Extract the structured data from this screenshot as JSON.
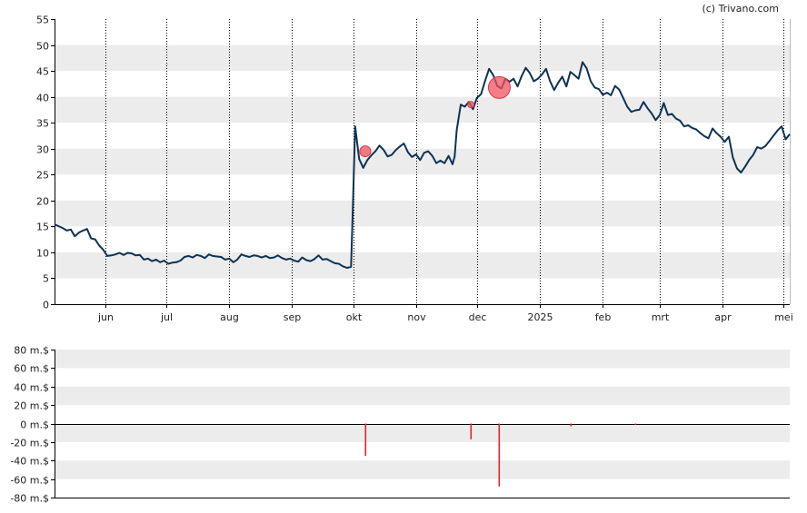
{
  "credit": "(c) Trivano.com",
  "colors": {
    "price_line": "#0e3354",
    "marker": "#f0525f",
    "volume_bar": "#e8202f",
    "band": "#ececec",
    "axis": "#000000"
  },
  "chart_data": [
    {
      "type": "line",
      "title": "",
      "xlabel": "",
      "ylabel": "",
      "ylim": [
        0,
        55
      ],
      "yticks": [
        0,
        5,
        10,
        15,
        20,
        25,
        30,
        35,
        40,
        45,
        50,
        55
      ],
      "grid": "vertical dotted at month ticks; horizontal alternating bands",
      "x_ticks": [
        "jun",
        "jul",
        "aug",
        "sep",
        "okt",
        "nov",
        "dec",
        "2025",
        "feb",
        "mrt",
        "apr",
        "mei"
      ],
      "x_tick_days": [
        25,
        55,
        86,
        117,
        147,
        178,
        208,
        239,
        270,
        298,
        329,
        359
      ],
      "x_range_days": [
        0,
        362
      ],
      "series": [
        {
          "day": [
            0,
            4,
            6,
            8,
            10,
            12,
            14,
            16,
            18,
            20,
            22,
            24,
            26,
            28,
            30,
            32,
            34,
            36,
            38,
            40,
            42,
            44,
            46,
            48,
            50,
            52,
            54,
            56,
            58,
            60,
            62,
            64,
            66,
            68,
            70,
            72,
            74,
            76,
            78,
            80,
            82,
            84,
            86,
            88,
            90,
            92,
            94,
            96,
            98,
            100,
            102,
            104,
            106,
            108,
            110,
            112,
            114,
            116,
            118,
            120,
            122,
            124,
            126,
            128,
            130,
            132,
            134,
            136,
            138,
            140,
            142,
            144,
            146,
            147,
            148,
            150,
            152,
            154,
            156,
            158,
            160,
            162,
            164,
            166,
            168,
            170,
            172,
            174,
            176,
            178,
            180,
            182,
            184,
            186,
            188,
            190,
            192,
            194,
            196,
            197,
            198,
            200,
            202,
            204,
            206,
            208,
            210,
            212,
            214,
            216,
            218,
            220,
            222,
            224,
            226,
            228,
            230,
            232,
            234,
            236,
            238,
            240,
            242,
            244,
            246,
            248,
            250,
            252,
            254,
            256,
            258,
            260,
            262,
            264,
            266,
            268,
            270,
            272,
            274,
            276,
            278,
            280,
            282,
            284,
            286,
            288,
            290,
            292,
            294,
            296,
            298,
            300,
            302,
            304,
            306,
            308,
            310,
            312,
            314,
            316,
            318,
            320,
            322,
            324,
            326,
            328,
            330,
            332,
            334,
            336,
            338,
            340,
            342,
            344,
            346,
            348,
            350,
            352,
            354,
            356,
            358,
            360,
            362
          ],
          "values": [
            15.4,
            14.7,
            14.2,
            14.4,
            13.1,
            13.8,
            14.2,
            14.5,
            12.7,
            12.5,
            11.3,
            10.5,
            9.3,
            9.4,
            9.6,
            9.9,
            9.5,
            9.9,
            9.8,
            9.4,
            9.5,
            8.6,
            8.8,
            8.3,
            8.6,
            8.1,
            8.4,
            7.8,
            8.0,
            8.1,
            8.4,
            9.1,
            9.3,
            9.0,
            9.5,
            9.3,
            8.9,
            9.6,
            9.3,
            9.2,
            9.1,
            8.6,
            8.8,
            8.1,
            8.6,
            9.6,
            9.3,
            9.1,
            9.4,
            9.3,
            9.0,
            9.3,
            8.9,
            9.0,
            9.4,
            8.9,
            8.6,
            8.8,
            8.4,
            8.2,
            9.0,
            8.5,
            8.3,
            8.7,
            9.4,
            8.6,
            8.7,
            8.3,
            7.9,
            7.8,
            7.3,
            7.0,
            7.2,
            20.0,
            34.3,
            28.0,
            26.3,
            27.8,
            28.7,
            29.5,
            30.6,
            29.8,
            28.5,
            28.8,
            29.7,
            30.4,
            31.0,
            29.3,
            28.4,
            28.9,
            27.8,
            29.2,
            29.5,
            28.6,
            27.2,
            27.7,
            27.2,
            28.6,
            27.0,
            28.5,
            33.5,
            38.5,
            38.1,
            39.0,
            37.6,
            39.8,
            40.5,
            43.1,
            45.4,
            44.2,
            42.1,
            41.6,
            43.5,
            42.9,
            43.5,
            42.0,
            44.0,
            45.6,
            44.6,
            43.0,
            43.5,
            44.3,
            45.4,
            43.0,
            41.3,
            42.7,
            43.9,
            42.0,
            44.8,
            44.2,
            43.5,
            46.7,
            45.5,
            43.0,
            41.8,
            41.5,
            40.4,
            40.8,
            40.3,
            42.1,
            41.4,
            39.8,
            38.1,
            37.1,
            37.4,
            37.5,
            39.0,
            37.8,
            36.8,
            35.5,
            36.5,
            38.8,
            36.5,
            36.7,
            35.8,
            35.4,
            34.3,
            34.5,
            34.0,
            33.7,
            33.0,
            32.4,
            32.0,
            33.9,
            33.0,
            32.3,
            31.3,
            32.3,
            28.3,
            26.2,
            25.4,
            26.5,
            27.8,
            28.8,
            30.3,
            30.0,
            30.5,
            31.5,
            32.5,
            33.5,
            34.3,
            31.8,
            32.8,
            33.0,
            33.3
          ]
        }
      ],
      "markers": [
        {
          "day": 153,
          "value": 29.5,
          "size": "small"
        },
        {
          "day": 205,
          "value": 38.5,
          "size": "tiny"
        },
        {
          "day": 219,
          "value": 41.8,
          "size": "large"
        }
      ]
    },
    {
      "type": "bar",
      "title": "",
      "xlabel": "",
      "ylabel": "",
      "ylim": [
        -80,
        80
      ],
      "ytick_values": [
        80,
        60,
        40,
        20,
        0,
        -20,
        -40,
        -60,
        -80
      ],
      "ytick_labels": [
        "80 m.$",
        "60 m.$",
        "40 m.$",
        "20 m.$",
        "0 m.$",
        "-20 m.$",
        "-40 m.$",
        "-60 m.$",
        "-80 m.$"
      ],
      "grid": "horizontal alternating bands",
      "bars": [
        {
          "day": 153,
          "value": -35
        },
        {
          "day": 205,
          "value": -17
        },
        {
          "day": 219,
          "value": -68
        },
        {
          "day": 254,
          "value": -3
        },
        {
          "day": 286,
          "value": -1.5
        }
      ]
    }
  ]
}
